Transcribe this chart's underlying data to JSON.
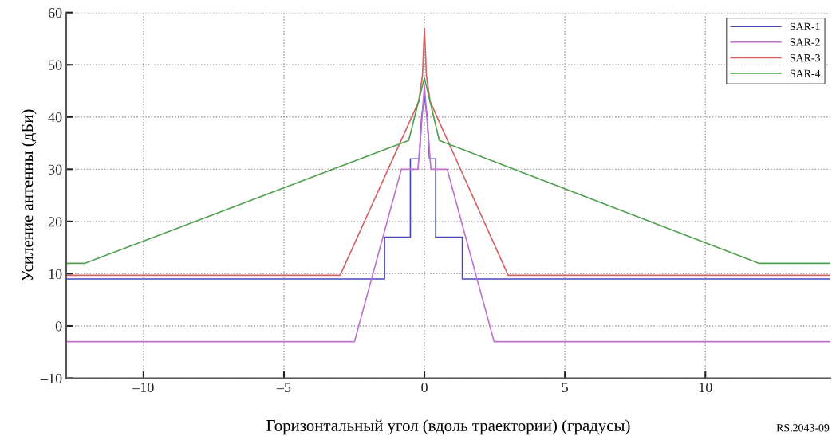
{
  "chart_data": {
    "type": "line",
    "xlabel": "Горизонтальный угол (вдоль траектории) (градусы)",
    "ylabel": "Усиление антенны (дБи)",
    "xlim": [
      -12.75,
      14.45
    ],
    "ylim": [
      -10,
      60
    ],
    "xticks": [
      {
        "value": -10,
        "label": "–10"
      },
      {
        "value": -5,
        "label": "–5"
      },
      0,
      5,
      10
    ],
    "yticks": [
      {
        "value": -10,
        "label": "–10"
      },
      0,
      10,
      20,
      30,
      40,
      50,
      60
    ],
    "grid": true,
    "legend": "top right",
    "line_style": "solid",
    "marker": "none",
    "annotations": [
      "RS.2043-09"
    ],
    "series": [
      {
        "name": "SAR-1",
        "color": "#4848b8",
        "x": [
          -12.75,
          -1.42,
          -1.42,
          -0.5,
          -0.5,
          -0.18,
          -0.1,
          0,
          0.1,
          0.18,
          0.4,
          0.4,
          1.35,
          1.35,
          14.45
        ],
        "values": [
          9,
          9,
          17,
          17,
          32,
          32,
          40,
          44,
          40,
          32,
          32,
          17,
          17,
          9,
          9
        ]
      },
      {
        "name": "SAR-2",
        "color": "#c070d0",
        "x": [
          -12.75,
          -2.49,
          -0.82,
          -0.23,
          0,
          0.23,
          0.81,
          2.48,
          14.45
        ],
        "values": [
          -3,
          -3,
          30,
          30,
          46,
          30,
          30,
          -3,
          -3
        ]
      },
      {
        "name": "SAR-3",
        "color": "#d06464",
        "x": [
          -12.75,
          -3.0,
          -0.2,
          -0.07,
          0,
          0.07,
          0.2,
          2.98,
          14.45
        ],
        "values": [
          9.7,
          9.7,
          43,
          48,
          57,
          48,
          43,
          9.7,
          9.7
        ]
      },
      {
        "name": "SAR-4",
        "color": "#50a050",
        "x": [
          -12.75,
          -12.08,
          -0.56,
          0,
          0.53,
          11.9,
          14.45
        ],
        "values": [
          12,
          12,
          35.5,
          47.5,
          35.5,
          12,
          12
        ]
      }
    ]
  }
}
